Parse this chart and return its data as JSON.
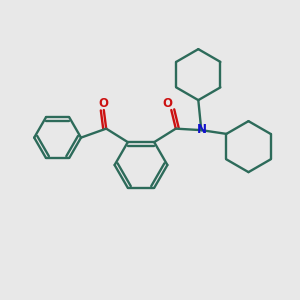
{
  "bg": "#e8e8e8",
  "bc": "#2d6b5a",
  "oc": "#cc1111",
  "nc": "#1111cc",
  "lw": 1.7,
  "figsize": [
    3.0,
    3.0
  ],
  "dpi": 100,
  "xlim": [
    0,
    10
  ],
  "ylim": [
    0,
    10
  ]
}
